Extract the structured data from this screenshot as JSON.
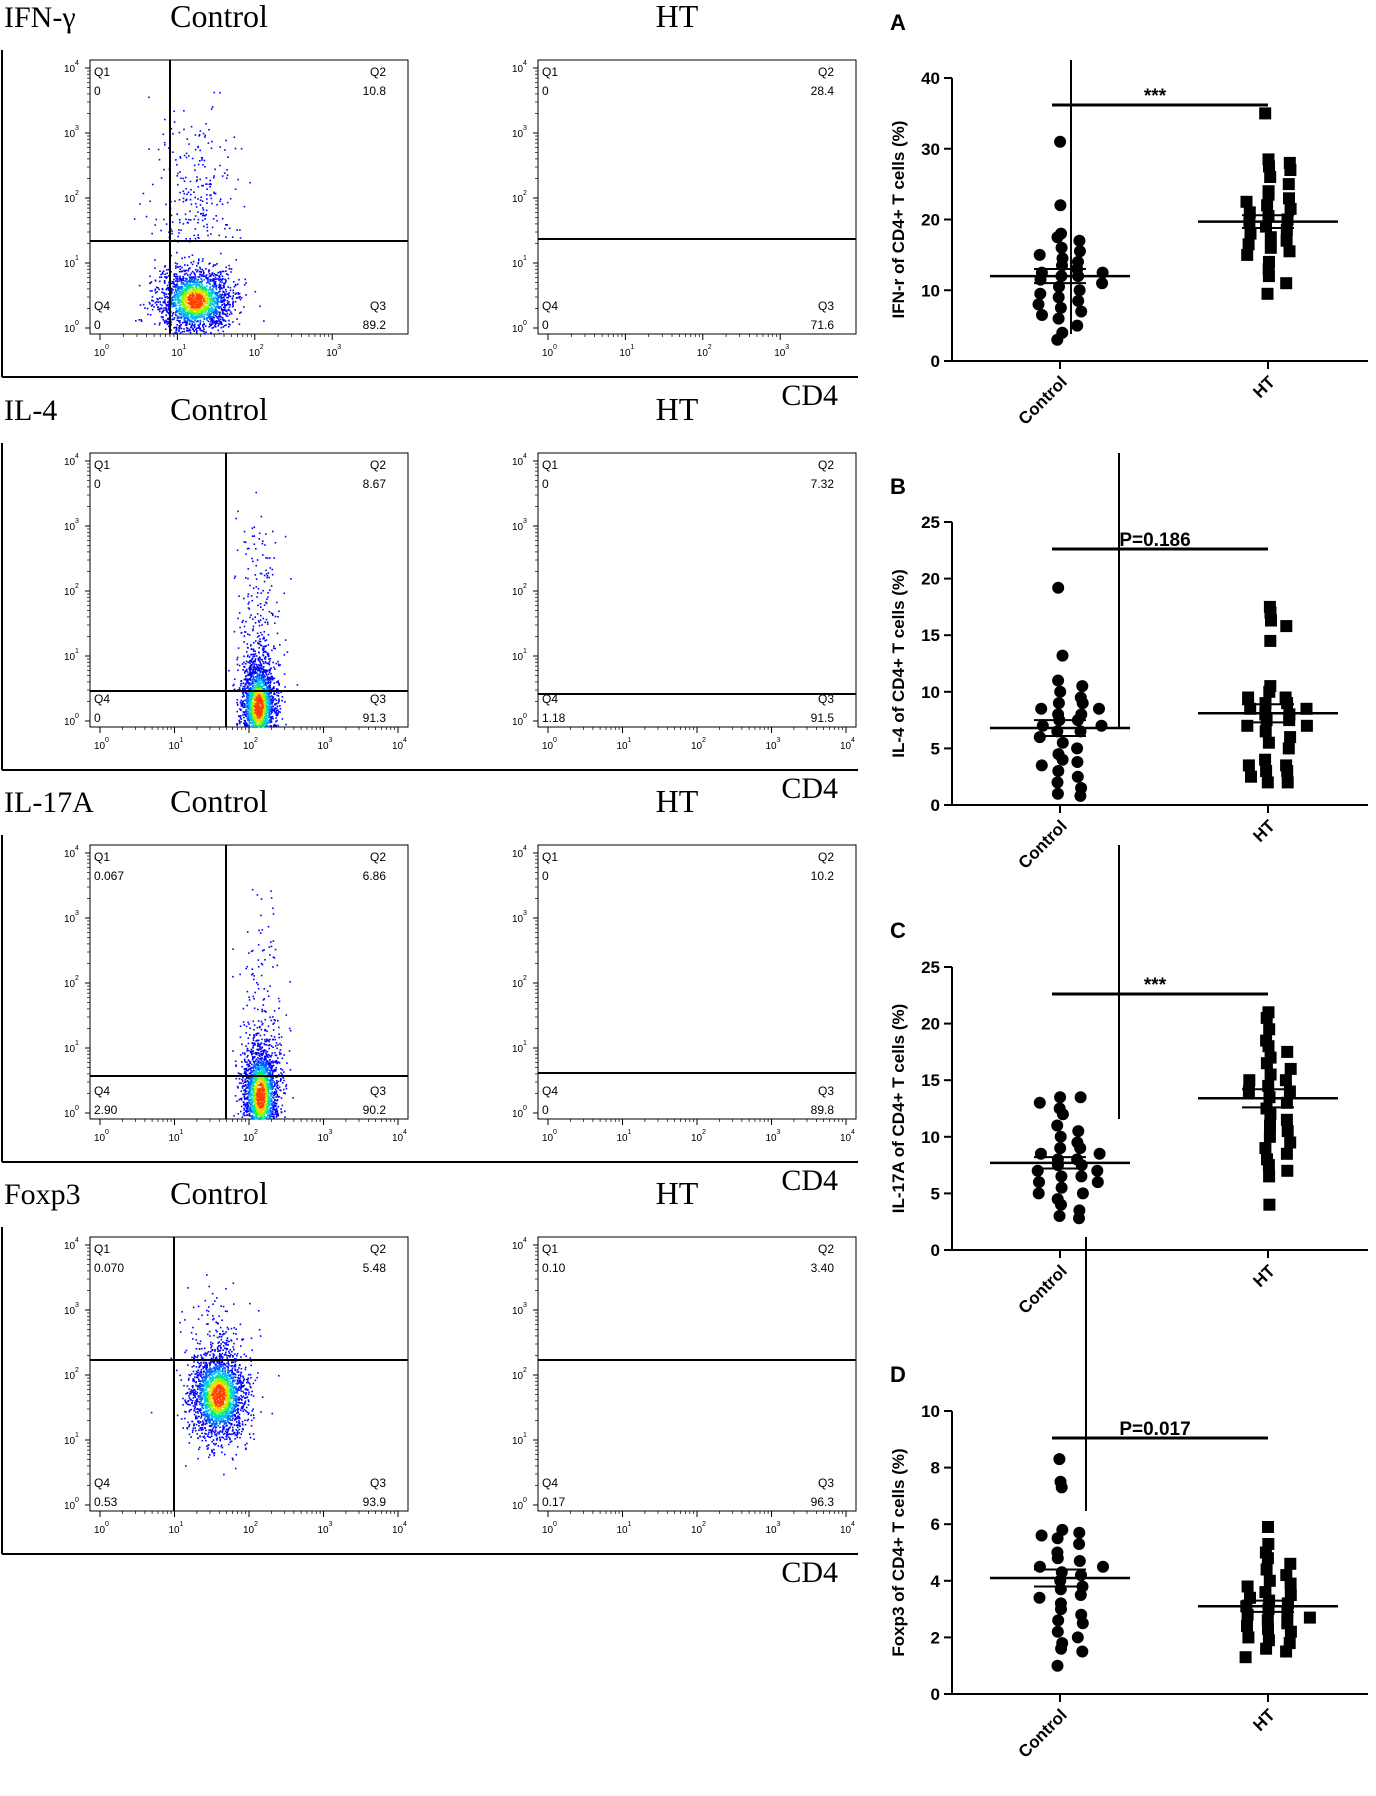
{
  "flow_rows": [
    {
      "marker": "IFN-γ",
      "x_axis_label": "CD4",
      "x_ticks": [
        "10",
        "10",
        "10",
        "10"
      ],
      "x_tick_exponents": [
        "0",
        "1",
        "2",
        "3"
      ],
      "y_ticks": [
        "10",
        "10",
        "10",
        "10",
        "10"
      ],
      "y_tick_exponents": [
        "0",
        "1",
        "2",
        "3",
        "4"
      ],
      "plots": [
        {
          "group": "Control",
          "quadrants": {
            "Q1": "0",
            "Q2": "10.8",
            "Q3": "89.2",
            "Q4": "0"
          }
        },
        {
          "group": "HT",
          "quadrants": {
            "Q1": "0",
            "Q2": "28.4",
            "Q3": "71.6",
            "Q4": "0"
          }
        }
      ]
    },
    {
      "marker": "IL-4",
      "x_axis_label": "CD4",
      "x_ticks": [
        "10",
        "10",
        "10",
        "10",
        "10"
      ],
      "x_tick_exponents": [
        "0",
        "1",
        "2",
        "3",
        "4"
      ],
      "y_ticks": [
        "10",
        "10",
        "10",
        "10",
        "10"
      ],
      "y_tick_exponents": [
        "0",
        "1",
        "2",
        "3",
        "4"
      ],
      "plots": [
        {
          "group": "Control",
          "quadrants": {
            "Q1": "0",
            "Q2": "8.67",
            "Q3": "91.3",
            "Q4": "0"
          }
        },
        {
          "group": "HT",
          "quadrants": {
            "Q1": "0",
            "Q2": "7.32",
            "Q3": "91.5",
            "Q4": "1.18"
          }
        }
      ]
    },
    {
      "marker": "IL-17A",
      "x_axis_label": "CD4",
      "x_ticks": [
        "10",
        "10",
        "10",
        "10",
        "10"
      ],
      "x_tick_exponents": [
        "0",
        "1",
        "2",
        "3",
        "4"
      ],
      "y_ticks": [
        "10",
        "10",
        "10",
        "10",
        "10"
      ],
      "y_tick_exponents": [
        "0",
        "1",
        "2",
        "3",
        "4"
      ],
      "plots": [
        {
          "group": "Control",
          "quadrants": {
            "Q1": "0.067",
            "Q2": "6.86",
            "Q3": "90.2",
            "Q4": "2.90"
          }
        },
        {
          "group": "HT",
          "quadrants": {
            "Q1": "0",
            "Q2": "10.2",
            "Q3": "89.8",
            "Q4": "0"
          }
        }
      ]
    },
    {
      "marker": "Foxp3",
      "x_axis_label": "CD4",
      "x_ticks": [
        "10",
        "10",
        "10",
        "10",
        "10"
      ],
      "x_tick_exponents": [
        "0",
        "1",
        "2",
        "3",
        "4"
      ],
      "y_ticks": [
        "10",
        "10",
        "10",
        "10",
        "10"
      ],
      "y_tick_exponents": [
        "0",
        "1",
        "2",
        "3",
        "4"
      ],
      "plots": [
        {
          "group": "Control",
          "quadrants": {
            "Q1": "0.070",
            "Q2": "5.48",
            "Q3": "93.9",
            "Q4": "0.53"
          }
        },
        {
          "group": "HT",
          "quadrants": {
            "Q1": "0.10",
            "Q2": "3.40",
            "Q3": "96.3",
            "Q4": "0.17"
          }
        }
      ]
    }
  ],
  "chart_data": [
    {
      "type": "scatter",
      "panel": "A",
      "ylabel": "IFN-r of CD4+ T cells (%)",
      "categories": [
        "Control",
        "HT"
      ],
      "ylim": [
        0,
        40
      ],
      "yticks": [
        0,
        10,
        20,
        30,
        40
      ],
      "significance": "***",
      "series": [
        {
          "name": "Control",
          "marker": "circle",
          "mean": 12,
          "sem": 1,
          "values": [
            31,
            22,
            18,
            17.5,
            17,
            16,
            15.5,
            15,
            14.5,
            14,
            13.5,
            13,
            12.5,
            12.5,
            12,
            12,
            11.5,
            11,
            10.5,
            10,
            9.5,
            9,
            8.5,
            8,
            7.5,
            7,
            6.5,
            6,
            5,
            4,
            3
          ]
        },
        {
          "name": "HT",
          "marker": "square",
          "mean": 19.7,
          "sem": 0.9,
          "values": [
            35,
            28.5,
            28,
            27.5,
            27,
            26,
            25,
            24,
            23.5,
            23,
            22.5,
            22,
            21.5,
            21,
            20.5,
            20,
            19.5,
            19,
            18.5,
            18,
            17.5,
            17,
            16.5,
            16,
            15.5,
            15,
            14,
            13,
            12,
            11,
            9.5
          ]
        }
      ]
    },
    {
      "type": "scatter",
      "panel": "B",
      "ylabel": "IL-4 of CD4+ T cells (%)",
      "categories": [
        "Control",
        "HT"
      ],
      "ylim": [
        0,
        25
      ],
      "yticks": [
        0,
        5,
        10,
        15,
        20,
        25
      ],
      "significance": "P=0.186",
      "series": [
        {
          "name": "Control",
          "marker": "circle",
          "mean": 6.8,
          "sem": 0.7,
          "values": [
            19.2,
            13.2,
            11,
            10.5,
            10,
            9.5,
            9,
            9,
            8.5,
            8.5,
            8,
            8,
            7.5,
            7.5,
            7,
            7,
            6.5,
            6.5,
            6,
            5.5,
            5,
            4.5,
            4,
            3.8,
            3.5,
            3,
            2.5,
            2,
            1.5,
            1,
            0.8
          ]
        },
        {
          "name": "HT",
          "marker": "square",
          "mean": 8.1,
          "sem": 0.8,
          "values": [
            17.5,
            17,
            16.3,
            15.8,
            14.5,
            10.5,
            10,
            9.5,
            9.5,
            9,
            9,
            8.5,
            8.5,
            8,
            8,
            7.5,
            7.5,
            7,
            7,
            6.5,
            6,
            5.5,
            5,
            4,
            3.5,
            3.5,
            3,
            3,
            2.5,
            2,
            2
          ]
        }
      ]
    },
    {
      "type": "scatter",
      "panel": "C",
      "ylabel": "IL-17A of CD4+ T cells (%)",
      "categories": [
        "Control",
        "HT"
      ],
      "ylim": [
        0,
        25
      ],
      "yticks": [
        0,
        5,
        10,
        15,
        20,
        25
      ],
      "significance": "***",
      "series": [
        {
          "name": "Control",
          "marker": "circle",
          "mean": 7.7,
          "sem": 0.5,
          "values": [
            13.5,
            13.5,
            13,
            12.5,
            12,
            11,
            10.5,
            10,
            9.5,
            9,
            9,
            8.5,
            8.5,
            8,
            8,
            7.5,
            7.5,
            7,
            7,
            6.5,
            6.5,
            6,
            6,
            5.5,
            5,
            5,
            4.5,
            4,
            3.5,
            3,
            2.8
          ]
        },
        {
          "name": "HT",
          "marker": "square",
          "mean": 13.4,
          "sem": 0.8,
          "values": [
            21,
            20.5,
            19.5,
            18.5,
            18,
            17.5,
            17,
            16.5,
            16,
            15.5,
            15,
            15,
            14.5,
            14,
            14,
            13.5,
            13,
            12.5,
            12,
            11.5,
            11,
            10.5,
            10,
            9.5,
            9,
            8.5,
            8,
            7.5,
            7,
            6.5,
            4
          ]
        }
      ]
    },
    {
      "type": "scatter",
      "panel": "D",
      "ylabel": "Foxp3 of CD4+ T cells (%)",
      "categories": [
        "Control",
        "HT"
      ],
      "ylim": [
        0,
        10
      ],
      "yticks": [
        0,
        2,
        4,
        6,
        8,
        10
      ],
      "significance": "P=0.017",
      "series": [
        {
          "name": "Control",
          "marker": "circle",
          "mean": 4.1,
          "sem": 0.3,
          "values": [
            8.3,
            7.5,
            7.3,
            5.8,
            5.7,
            5.6,
            5.5,
            5.3,
            5,
            4.8,
            4.7,
            4.5,
            4.5,
            4.3,
            4.2,
            4,
            3.8,
            3.7,
            3.5,
            3.4,
            3.2,
            3,
            2.8,
            2.6,
            2.5,
            2.2,
            2,
            1.8,
            1.6,
            1.5,
            1
          ]
        },
        {
          "name": "HT",
          "marker": "square",
          "mean": 3.1,
          "sem": 0.2,
          "values": [
            5.9,
            5.3,
            5,
            4.8,
            4.6,
            4.4,
            4.2,
            4,
            3.9,
            3.8,
            3.6,
            3.5,
            3.4,
            3.3,
            3.2,
            3.1,
            3,
            2.9,
            2.8,
            2.7,
            2.6,
            2.5,
            2.4,
            2.3,
            2.2,
            2,
            1.9,
            1.8,
            1.6,
            1.5,
            1.3
          ]
        }
      ]
    }
  ]
}
